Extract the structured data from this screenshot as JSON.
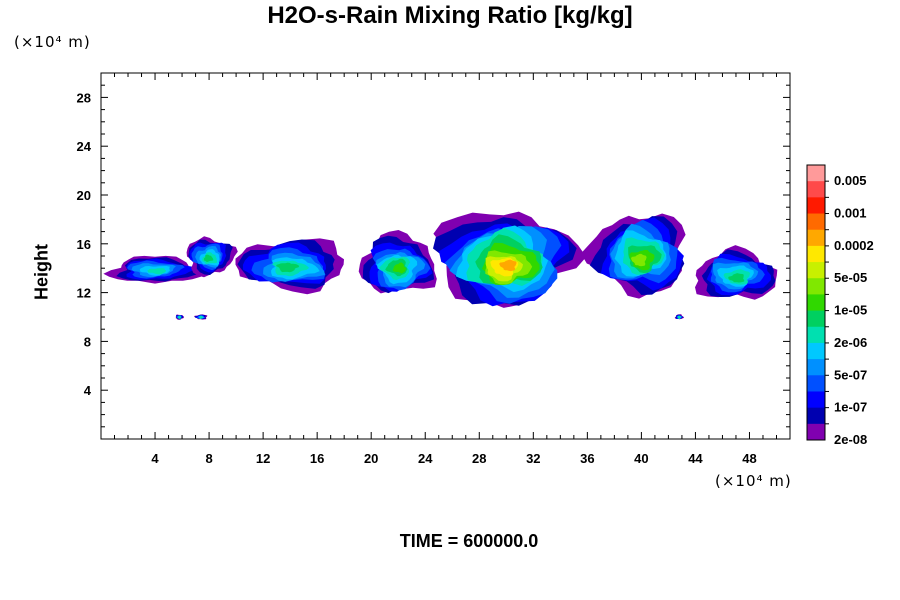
{
  "chart_data": {
    "type": "heatmap",
    "title": "H2O-s-Rain Mixing Ratio [kg/kg]",
    "xlabel": "",
    "ylabel": "Height",
    "x_unit": "(×10⁴ m)",
    "y_unit": "(×10⁴ m)",
    "xlim": [
      0,
      51
    ],
    "ylim": [
      0,
      30
    ],
    "x_ticks": [
      4,
      8,
      12,
      16,
      20,
      24,
      28,
      32,
      36,
      40,
      44,
      48
    ],
    "y_ticks": [
      4,
      8,
      12,
      16,
      20,
      24,
      28
    ],
    "colorbar": {
      "labels": [
        "0.005",
        "0.001",
        "0.0002",
        "5e-05",
        "1e-05",
        "2e-06",
        "5e-07",
        "1e-07",
        "2e-08"
      ],
      "colors_top_to_bottom": [
        "#ff9a9a",
        "#ff4a4a",
        "#ff1a00",
        "#ff6a00",
        "#ffa800",
        "#ffe800",
        "#c8f000",
        "#80e800",
        "#30d800",
        "#00d060",
        "#00e0b0",
        "#00c8ff",
        "#0090ff",
        "#0050ff",
        "#0000ff",
        "#0000b0",
        "#8000b0"
      ]
    },
    "rain_cells": [
      {
        "x_center": 4.0,
        "width": 6.5,
        "top": 15.0,
        "bottom": 12.8,
        "max_level": 6
      },
      {
        "x_center": 8.0,
        "width": 3.5,
        "top": 16.5,
        "bottom": 13.5,
        "max_level": 7
      },
      {
        "x_center": 14.0,
        "width": 8.0,
        "top": 16.3,
        "bottom": 12.2,
        "max_level": 7
      },
      {
        "x_center": 22.0,
        "width": 5.5,
        "top": 16.6,
        "bottom": 11.8,
        "max_level": 8
      },
      {
        "x_center": 30.0,
        "width": 10.0,
        "top": 18.6,
        "bottom": 11.0,
        "max_level": 12
      },
      {
        "x_center": 40.0,
        "width": 7.0,
        "top": 18.5,
        "bottom": 12.0,
        "max_level": 9
      },
      {
        "x_center": 47.0,
        "width": 6.0,
        "top": 15.5,
        "bottom": 11.5,
        "max_level": 7
      },
      {
        "x_center": 5.8,
        "width": 0.6,
        "top": 10.2,
        "bottom": 9.8,
        "max_level": 6
      },
      {
        "x_center": 7.4,
        "width": 0.9,
        "top": 10.2,
        "bottom": 9.8,
        "max_level": 6
      },
      {
        "x_center": 42.8,
        "width": 0.6,
        "top": 10.2,
        "bottom": 9.8,
        "max_level": 6
      }
    ],
    "footer": "TIME = 600000.0"
  }
}
